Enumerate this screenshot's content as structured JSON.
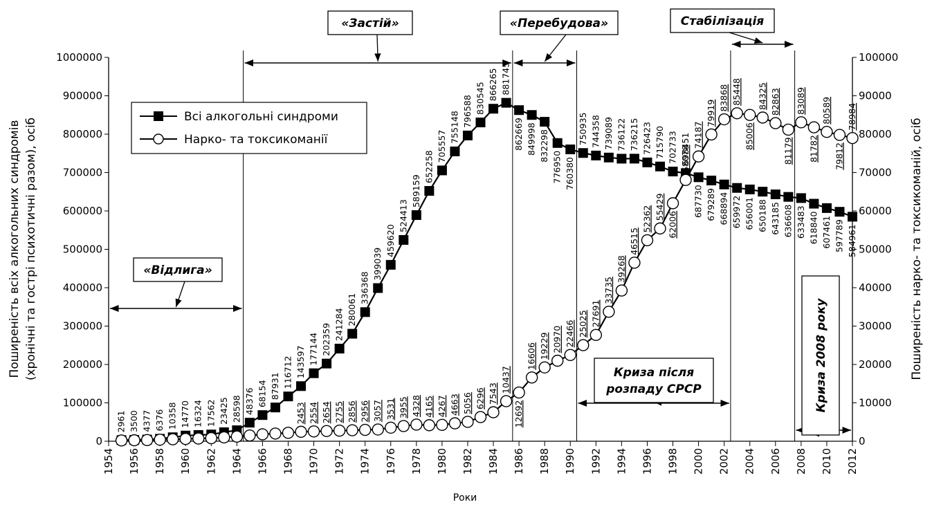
{
  "chart_data": {
    "type": "line",
    "x": [
      1955,
      1956,
      1957,
      1958,
      1959,
      1960,
      1961,
      1962,
      1963,
      1964,
      1965,
      1966,
      1967,
      1968,
      1969,
      1970,
      1971,
      1972,
      1973,
      1974,
      1975,
      1976,
      1977,
      1978,
      1979,
      1980,
      1981,
      1982,
      1983,
      1984,
      1985,
      1986,
      1987,
      1988,
      1989,
      1990,
      1991,
      1992,
      1993,
      1994,
      1995,
      1996,
      1997,
      1998,
      1999,
      2000,
      2001,
      2002,
      2003,
      2004,
      2005,
      2006,
      2007,
      2008,
      2009,
      2010,
      2011,
      2012
    ],
    "xlim": [
      1954,
      2012
    ],
    "xticks": [
      1954,
      1956,
      1958,
      1960,
      1962,
      1964,
      1966,
      1968,
      1970,
      1972,
      1974,
      1976,
      1978,
      1980,
      1982,
      1984,
      1986,
      1988,
      1990,
      1992,
      1994,
      1996,
      1998,
      2000,
      2002,
      2004,
      2006,
      2008,
      2010,
      2012
    ],
    "ylim": [
      0,
      1000000
    ],
    "yticks": [
      0,
      100000,
      200000,
      300000,
      400000,
      500000,
      600000,
      700000,
      800000,
      900000,
      1000000
    ],
    "y2lim": [
      0,
      100000
    ],
    "y2ticks": [
      0,
      10000,
      20000,
      30000,
      40000,
      50000,
      60000,
      70000,
      80000,
      90000,
      100000
    ],
    "xlabel": "Роки",
    "ylabel": [
      "Поширеність всіх алкогольних синдромів",
      "(хронічні та гострі психотичні разом), осіб"
    ],
    "y2label": "Поширеність нарко- та токсикоманій, осіб",
    "legend": "upper left",
    "series": [
      {
        "name": "Всі алкогольні синдроми",
        "color": "#000000",
        "marker": "square",
        "values": [
          2961,
          3500,
          4377,
          6376,
          10358,
          14770,
          16324,
          17562,
          23425,
          28598,
          48376,
          68154,
          87931,
          116712,
          143597,
          177144,
          202359,
          241284,
          280061,
          336368,
          399039,
          459620,
          524413,
          589159,
          652258,
          705557,
          755148,
          796588,
          830545,
          866265,
          881745,
          862669,
          849998,
          832298,
          776950,
          760380,
          750935,
          744358,
          739089,
          736122,
          736215,
          726423,
          715790,
          702733,
          698451,
          687730,
          679289,
          668894,
          659972,
          656001,
          650188,
          643185,
          636608,
          633483,
          618840,
          607461,
          597789,
          584961
        ]
      },
      {
        "name": "Нарко- та токсикоманії",
        "color": "#000000",
        "marker": "circle",
        "axis": "y2",
        "values": [
          200,
          250,
          300,
          400,
          500,
          600,
          700,
          800,
          1000,
          1200,
          1500,
          1800,
          2000,
          2200,
          2453,
          2554,
          2654,
          2755,
          2856,
          2956,
          3057,
          3531,
          3955,
          4328,
          4165,
          4267,
          4663,
          5056,
          6296,
          7543,
          10437,
          12692,
          16606,
          19229,
          20970,
          22466,
          25025,
          27691,
          33735,
          39268,
          46515,
          52362,
          55429,
          62006,
          68078,
          74187,
          79919,
          83868,
          85448,
          85006,
          84325,
          82863,
          81179,
          83089,
          81782,
          80589,
          79812,
          78984
        ],
        "value_labels": [
          null,
          null,
          null,
          null,
          null,
          null,
          null,
          null,
          null,
          null,
          null,
          null,
          null,
          null,
          "2453",
          "2554",
          "2654",
          "2755",
          "2856",
          "2956",
          "3057",
          "3531",
          "3955",
          "4328",
          "4165",
          "4267",
          "4663",
          "5056",
          "6296",
          "7543",
          "10437",
          "12692",
          "16606",
          "19229",
          "20970",
          "22466",
          "25025",
          "27691",
          "33735",
          "39268",
          "46515",
          "52362",
          "55429",
          "62006",
          "68078",
          "74187",
          "79919",
          "83868",
          "85448",
          "85006",
          "84325",
          "82863",
          "81179",
          "83089",
          "81782",
          "80589",
          "79812",
          "78984"
        ]
      }
    ],
    "annotations": [
      {
        "text": [
          "«Відлига»"
        ],
        "x": [
          1954,
          1964.5
        ]
      },
      {
        "text": [
          "«Застій»"
        ],
        "x": [
          1964.5,
          1985.5
        ]
      },
      {
        "text": [
          "«Перебудова»"
        ],
        "x": [
          1985.5,
          1990.5
        ]
      },
      {
        "text": [
          "Стабілізація"
        ],
        "x": [
          2002.5,
          2007.5
        ]
      },
      {
        "text": [
          "Криза після",
          "розпаду СРСР"
        ],
        "x": [
          1990.5,
          2002.5
        ]
      },
      {
        "text": [
          "Криза 2008 року"
        ],
        "x": [
          2007.5,
          2012
        ]
      }
    ]
  }
}
